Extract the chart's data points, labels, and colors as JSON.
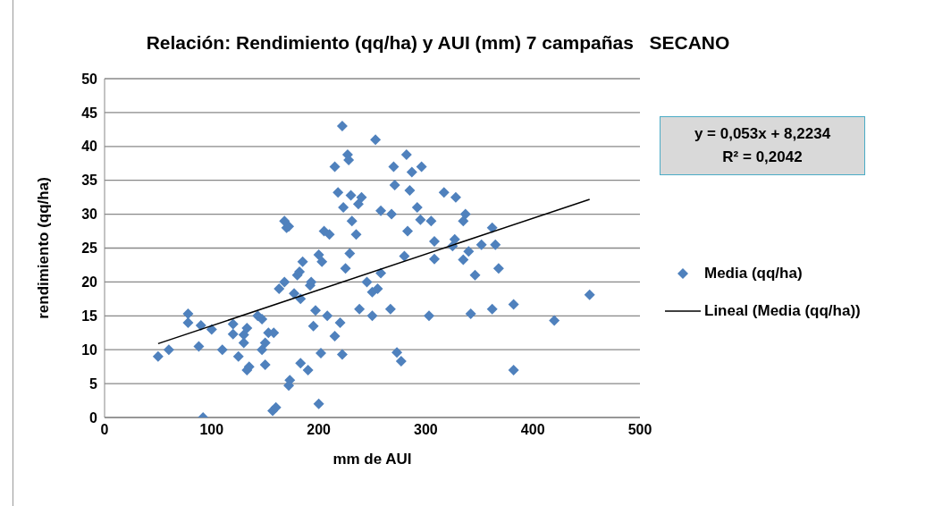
{
  "chart_data": {
    "type": "scatter",
    "title": "Relación: Rendimiento (qq/ha) y AUI (mm) 7 campañas   SECANO",
    "xlabel": "mm de AUI",
    "ylabel": "rendimiento (qq/ha)",
    "xlim": [
      0,
      500
    ],
    "xticks": [
      0,
      100,
      200,
      300,
      400,
      500
    ],
    "ylim": [
      0,
      50
    ],
    "yticks": [
      0,
      5,
      10,
      15,
      20,
      25,
      30,
      35,
      40,
      45,
      50
    ],
    "grid": "y",
    "legend": "right",
    "marker": "diamond",
    "annotations": [
      "y = 0,053x + 8,2234",
      "R² = 0,2042"
    ],
    "series": [
      {
        "name": "Media (qq/ha)",
        "color": "#4f81bd",
        "x": [
          50,
          60,
          78,
          78,
          88,
          90,
          92,
          100,
          110,
          120,
          120,
          125,
          130,
          130,
          133,
          133,
          135,
          143,
          147,
          147,
          150,
          150,
          153,
          157,
          160,
          158,
          163,
          168,
          170,
          172,
          168,
          172,
          173,
          177,
          180,
          182,
          183,
          183,
          185,
          190,
          192,
          193,
          195,
          197,
          200,
          200,
          202,
          203,
          205,
          208,
          210,
          215,
          215,
          218,
          220,
          222,
          223,
          225,
          222,
          227,
          228,
          229,
          230,
          231,
          235,
          237,
          238,
          240,
          245,
          250,
          250,
          253,
          255,
          258,
          258,
          267,
          268,
          270,
          271,
          273,
          277,
          280,
          282,
          283,
          285,
          287,
          292,
          295,
          296,
          303,
          305,
          308,
          308,
          317,
          325,
          327,
          328,
          335,
          335,
          337,
          340,
          342,
          346,
          352,
          362,
          362,
          365,
          368,
          382,
          382,
          420,
          453
        ],
        "values": [
          9,
          10,
          14,
          15.3,
          10.5,
          13.6,
          0,
          13,
          10,
          13.8,
          12.3,
          9,
          11,
          12.2,
          13.2,
          7,
          7.5,
          15,
          10,
          14.5,
          7.8,
          11,
          12.5,
          1,
          1.5,
          12.5,
          19,
          29,
          28,
          28.2,
          20,
          4.7,
          5.5,
          18.3,
          21,
          21.5,
          17.5,
          8,
          23,
          7,
          19.5,
          20,
          13.5,
          15.8,
          24,
          2,
          9.5,
          23,
          27.5,
          15,
          27,
          37,
          12,
          33.2,
          14,
          43,
          31,
          22,
          9.3,
          38.8,
          38,
          24.2,
          32.8,
          29,
          27,
          31.5,
          16,
          32.5,
          20,
          15,
          18.5,
          41,
          19,
          21.3,
          30.5,
          16,
          30,
          37,
          34.3,
          9.6,
          8.3,
          23.8,
          38.8,
          27.5,
          33.5,
          36.2,
          31,
          29.2,
          37,
          15,
          29,
          26,
          23.4,
          33.2,
          25.3,
          26.3,
          32.5,
          23.3,
          29,
          30,
          24.5,
          15.3,
          21,
          25.5,
          28,
          16,
          25.5,
          22,
          16.7,
          7,
          14.3,
          18.1
        ]
      },
      {
        "name": "Lineal (Media (qq/ha))",
        "type": "line",
        "color": "#000000",
        "marker": "none",
        "x": [
          50,
          453
        ],
        "values": [
          10.9,
          32.2
        ]
      }
    ]
  }
}
